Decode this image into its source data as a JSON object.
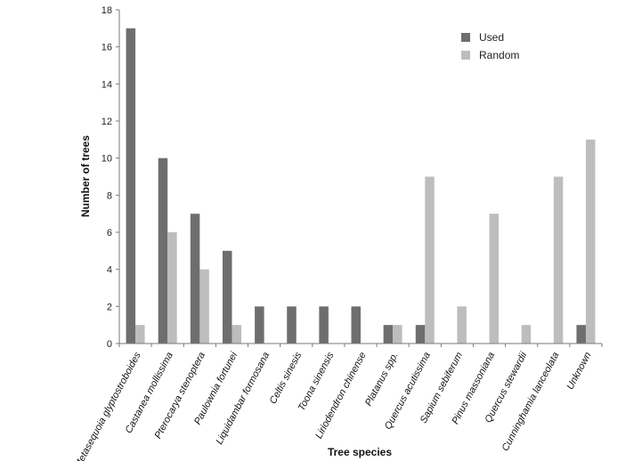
{
  "chart_data": {
    "type": "bar",
    "xlabel": "Tree species",
    "ylabel": "Number of trees",
    "ylim": [
      0,
      18
    ],
    "yticks": [
      0,
      2,
      4,
      6,
      8,
      10,
      12,
      14,
      16,
      18
    ],
    "grid": false,
    "legend_position": "top-right",
    "categories": [
      "Metasequoia glyptostroboides",
      "Castanea mollissima",
      "Pterocarya stenoptera",
      "Paulownia fortunei",
      "Liquidambar formosana",
      "Celtis sinesis",
      "Toona sinensis",
      "Liriodendron chinense",
      "Platanus spp.",
      "Quercus acutissima",
      "Sapium sebiferum",
      "Pinus massoniana",
      "Quercus stewardii",
      "Cunninghamia lanceolata",
      "Unknown"
    ],
    "series": [
      {
        "name": "Used",
        "color": "#6e6e6e",
        "values": [
          17,
          10,
          7,
          5,
          2,
          2,
          2,
          2,
          1,
          1,
          0,
          0,
          0,
          0,
          1
        ]
      },
      {
        "name": "Random",
        "color": "#bdbdbd",
        "values": [
          1,
          6,
          4,
          1,
          0,
          0,
          0,
          0,
          1,
          9,
          2,
          7,
          1,
          9,
          11
        ]
      }
    ]
  }
}
